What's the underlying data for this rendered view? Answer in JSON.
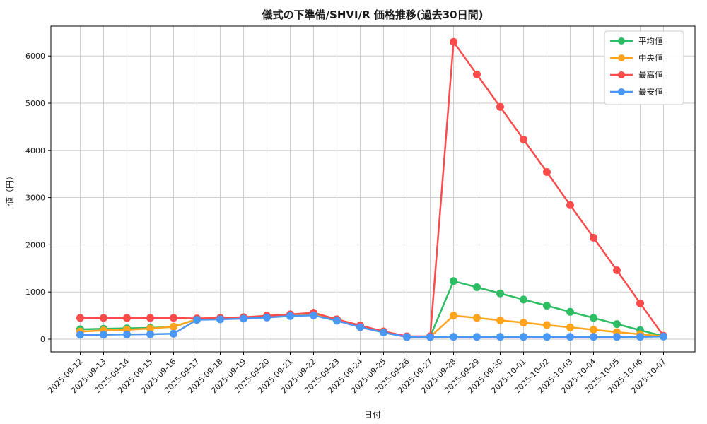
{
  "chart_data": {
    "type": "line",
    "title": "儀式の下準備/SHVI/R 価格推移(過去30日間)",
    "xlabel": "日付",
    "ylabel": "値（円）",
    "categories": [
      "2025-09-12",
      "2025-09-13",
      "2025-09-14",
      "2025-09-15",
      "2025-09-16",
      "2025-09-17",
      "2025-09-18",
      "2025-09-19",
      "2025-09-20",
      "2025-09-21",
      "2025-09-22",
      "2025-09-23",
      "2025-09-24",
      "2025-09-25",
      "2025-09-26",
      "2025-09-27",
      "2025-09-28",
      "2025-09-29",
      "2025-09-30",
      "2025-10-01",
      "2025-10-02",
      "2025-10-03",
      "2025-10-04",
      "2025-10-05",
      "2025-10-06",
      "2025-10-07"
    ],
    "series": [
      {
        "name": "平均値",
        "color": "#2dbe64",
        "values": [
          210,
          220,
          230,
          240,
          260,
          425,
          435,
          450,
          475,
          505,
          530,
          405,
          270,
          150,
          55,
          55,
          1230,
          1100,
          970,
          840,
          710,
          580,
          450,
          320,
          190,
          65
        ]
      },
      {
        "name": "中央値",
        "color": "#ffa41c",
        "values": [
          160,
          185,
          200,
          225,
          265,
          420,
          430,
          445,
          470,
          500,
          520,
          400,
          265,
          145,
          50,
          50,
          500,
          450,
          400,
          350,
          300,
          250,
          200,
          150,
          105,
          60
        ]
      },
      {
        "name": "最高値",
        "color": "#fb4b4b",
        "values": [
          450,
          450,
          450,
          450,
          450,
          440,
          450,
          465,
          495,
          525,
          560,
          420,
          290,
          165,
          60,
          60,
          6300,
          5610,
          4920,
          4230,
          3540,
          2840,
          2150,
          1460,
          760,
          70
        ]
      },
      {
        "name": "最安値",
        "color": "#4b97f4",
        "values": [
          95,
          95,
          100,
          105,
          115,
          410,
          420,
          435,
          460,
          490,
          505,
          390,
          255,
          140,
          45,
          45,
          50,
          50,
          50,
          50,
          50,
          50,
          50,
          50,
          50,
          55
        ]
      }
    ],
    "yticks": [
      0,
      1000,
      2000,
      3000,
      4000,
      5000,
      6000
    ],
    "ylim": [
      -270,
      6620
    ],
    "grid": true,
    "grid_color": "#c8c8c8",
    "spine_color": "#000000",
    "background": "#ffffff",
    "legend_position": "upper right"
  }
}
